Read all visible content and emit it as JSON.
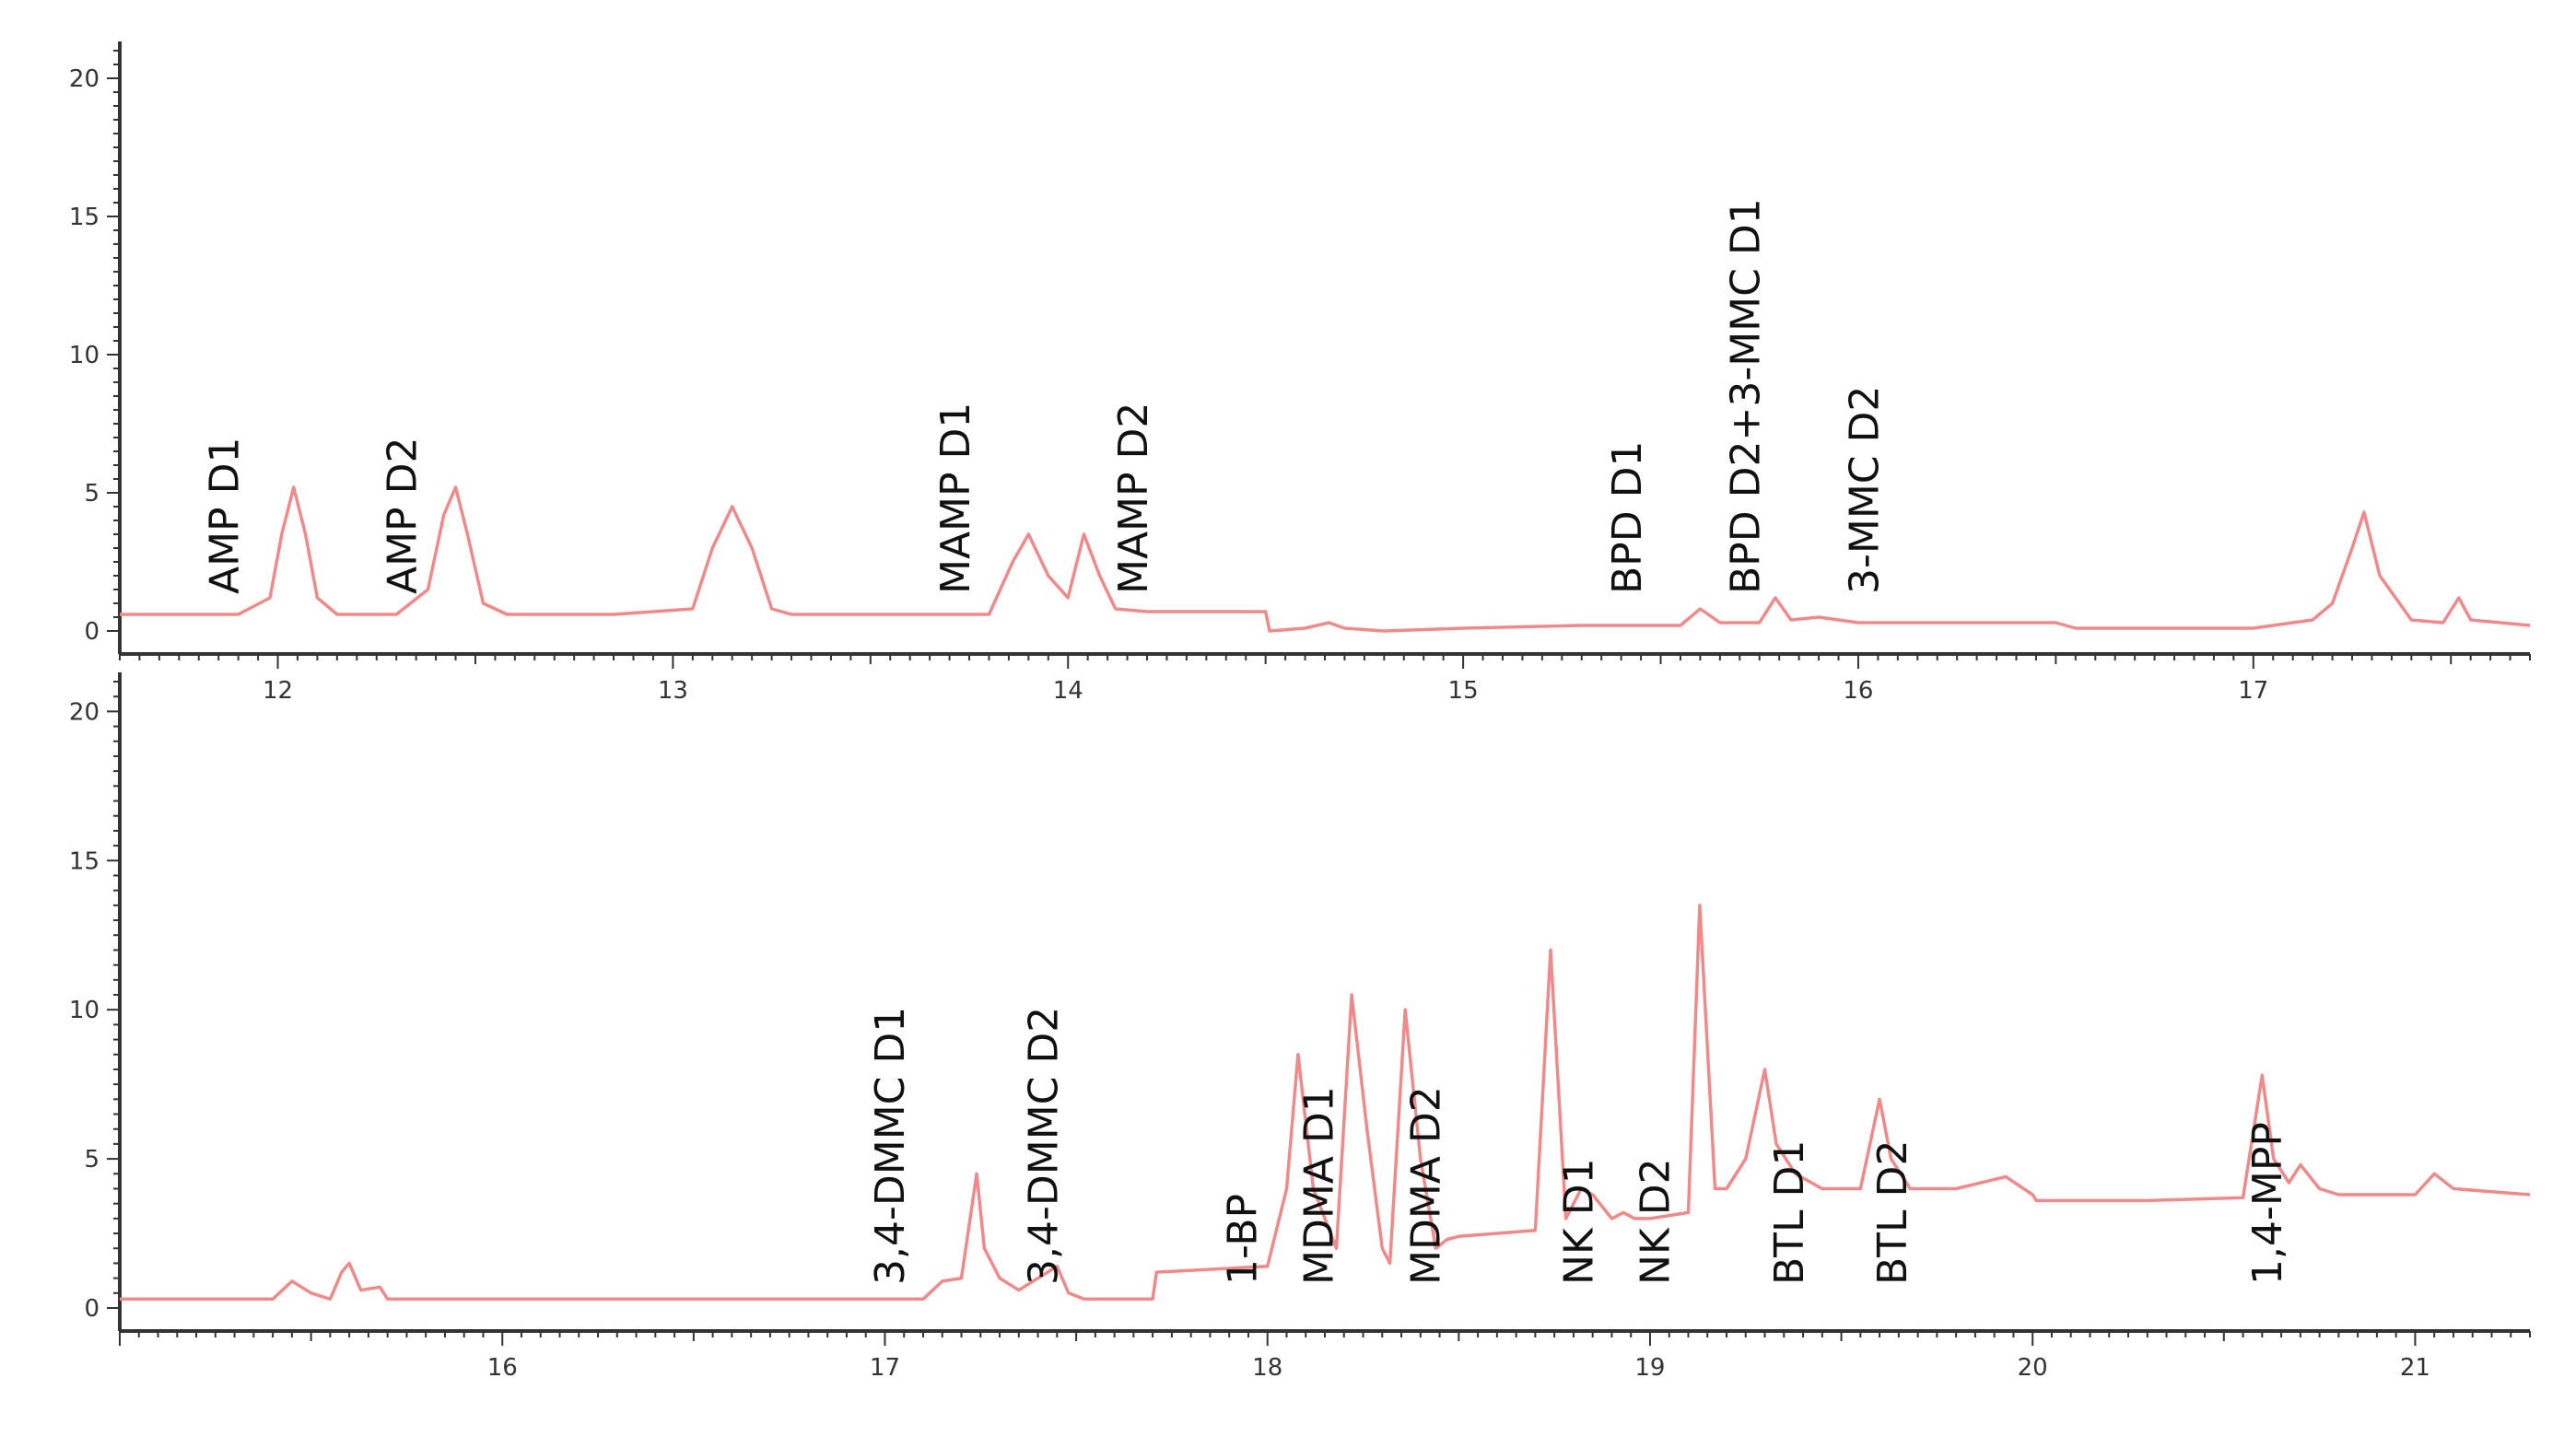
{
  "chart_data": [
    {
      "type": "line",
      "panel": "top",
      "ylim": [
        0,
        21
      ],
      "yticks": [
        "0",
        "5",
        "10",
        "15",
        "20"
      ],
      "xlim": [
        11.6,
        17.7
      ],
      "xticks": [
        "12",
        "13",
        "14",
        "15",
        "16",
        "17"
      ],
      "series": [
        {
          "color": "#f08a8a",
          "x": [
            11.6,
            11.9,
            11.98,
            12.01,
            12.04,
            12.07,
            12.1,
            12.15,
            12.2,
            12.3,
            12.38,
            12.42,
            12.45,
            12.48,
            12.52,
            12.58,
            12.7,
            12.85,
            13.05,
            13.1,
            13.15,
            13.2,
            13.25,
            13.3,
            13.5,
            13.8,
            13.86,
            13.9,
            13.95,
            14.0,
            14.04,
            14.08,
            14.12,
            14.2,
            14.5,
            14.51,
            14.6,
            14.66,
            14.7,
            14.8,
            15.0,
            15.3,
            15.55,
            15.6,
            15.65,
            15.75,
            15.79,
            15.83,
            15.9,
            16.0,
            16.5,
            16.55,
            17.0,
            17.15,
            17.2,
            17.25,
            17.28,
            17.32,
            17.4,
            17.48,
            17.52,
            17.55,
            17.7
          ],
          "y": [
            0.6,
            0.6,
            1.2,
            3.5,
            5.2,
            3.5,
            1.2,
            0.6,
            0.6,
            0.6,
            1.5,
            4.2,
            5.2,
            3.5,
            1.0,
            0.6,
            0.6,
            0.6,
            0.8,
            3.0,
            4.5,
            3.0,
            0.8,
            0.6,
            0.6,
            0.6,
            2.5,
            3.5,
            2.0,
            1.2,
            3.5,
            2.0,
            0.8,
            0.7,
            0.7,
            0.0,
            0.1,
            0.3,
            0.1,
            0.0,
            0.1,
            0.2,
            0.2,
            0.8,
            0.3,
            0.3,
            1.2,
            0.4,
            0.5,
            0.3,
            0.3,
            0.1,
            0.1,
            0.4,
            1.0,
            3.0,
            4.3,
            2.0,
            0.4,
            0.3,
            1.2,
            0.4,
            0.2
          ]
        }
      ],
      "annotations": [
        {
          "text": "AMP D1",
          "x": 11.9
        },
        {
          "text": "AMP D2",
          "x": 12.35
        },
        {
          "text": "MAMP D1",
          "x": 13.75
        },
        {
          "text": "MAMP D2",
          "x": 14.2
        },
        {
          "text": "BPD D1",
          "x": 15.45
        },
        {
          "text": "BPD D2+3-MMC D1",
          "x": 15.75
        },
        {
          "text": "3-MMC D2",
          "x": 16.05
        }
      ]
    },
    {
      "type": "line",
      "panel": "bottom",
      "ylim": [
        0,
        21
      ],
      "yticks": [
        "0",
        "5",
        "10",
        "15",
        "20"
      ],
      "xlim": [
        15.0,
        21.3
      ],
      "xticks": [
        "16",
        "17",
        "18",
        "19",
        "20",
        "21"
      ],
      "series": [
        {
          "color": "#f08a8a",
          "x": [
            15.0,
            15.4,
            15.45,
            15.5,
            15.55,
            15.58,
            15.6,
            15.63,
            15.68,
            15.7,
            15.75,
            16.5,
            17.1,
            17.15,
            17.2,
            17.24,
            17.26,
            17.3,
            17.35,
            17.45,
            17.48,
            17.52,
            17.6,
            17.7,
            17.71,
            18.0,
            18.05,
            18.08,
            18.12,
            18.18,
            18.22,
            18.26,
            18.3,
            18.32,
            18.36,
            18.4,
            18.44,
            18.47,
            18.5,
            18.7,
            18.74,
            18.78,
            18.82,
            18.85,
            18.9,
            18.93,
            18.96,
            19.0,
            19.1,
            19.13,
            19.17,
            19.2,
            19.25,
            19.3,
            19.33,
            19.38,
            19.45,
            19.55,
            19.6,
            19.63,
            19.68,
            19.8,
            19.93,
            20.0,
            20.01,
            20.3,
            20.55,
            20.6,
            20.63,
            20.67,
            20.7,
            20.75,
            20.8,
            21.0,
            21.05,
            21.1,
            21.3
          ],
          "y": [
            0.3,
            0.3,
            0.9,
            0.5,
            0.3,
            1.2,
            1.5,
            0.6,
            0.7,
            0.3,
            0.3,
            0.3,
            0.3,
            0.9,
            1.0,
            4.5,
            2.0,
            1.0,
            0.6,
            1.4,
            0.5,
            0.3,
            0.3,
            0.3,
            1.2,
            1.4,
            4.0,
            8.5,
            4.0,
            2.0,
            10.5,
            6.0,
            2.0,
            1.5,
            10.0,
            5.0,
            2.0,
            2.3,
            2.4,
            2.6,
            12.0,
            3.0,
            4.0,
            3.8,
            3.0,
            3.2,
            3.0,
            3.0,
            3.2,
            13.5,
            4.0,
            4.0,
            5.0,
            8.0,
            5.5,
            4.5,
            4.0,
            4.0,
            7.0,
            5.0,
            4.0,
            4.0,
            4.4,
            3.8,
            3.6,
            3.6,
            3.7,
            7.8,
            5.0,
            4.2,
            4.8,
            4.0,
            3.8,
            3.8,
            4.5,
            4.0,
            3.8
          ]
        }
      ],
      "annotations": [
        {
          "text": "3,4-DMMC D1",
          "x": 17.05
        },
        {
          "text": "3,4-DMMC D2",
          "x": 17.45
        },
        {
          "text": "1-BP",
          "x": 17.97
        },
        {
          "text": "MDMA D1",
          "x": 18.17
        },
        {
          "text": "MDMA D2",
          "x": 18.45
        },
        {
          "text": "NK D1",
          "x": 18.85
        },
        {
          "text": "NK D2",
          "x": 19.05
        },
        {
          "text": "BTL D1",
          "x": 19.4
        },
        {
          "text": "BTL D2",
          "x": 19.67
        },
        {
          "text": "1,4-MPP",
          "x": 20.65
        }
      ]
    }
  ]
}
